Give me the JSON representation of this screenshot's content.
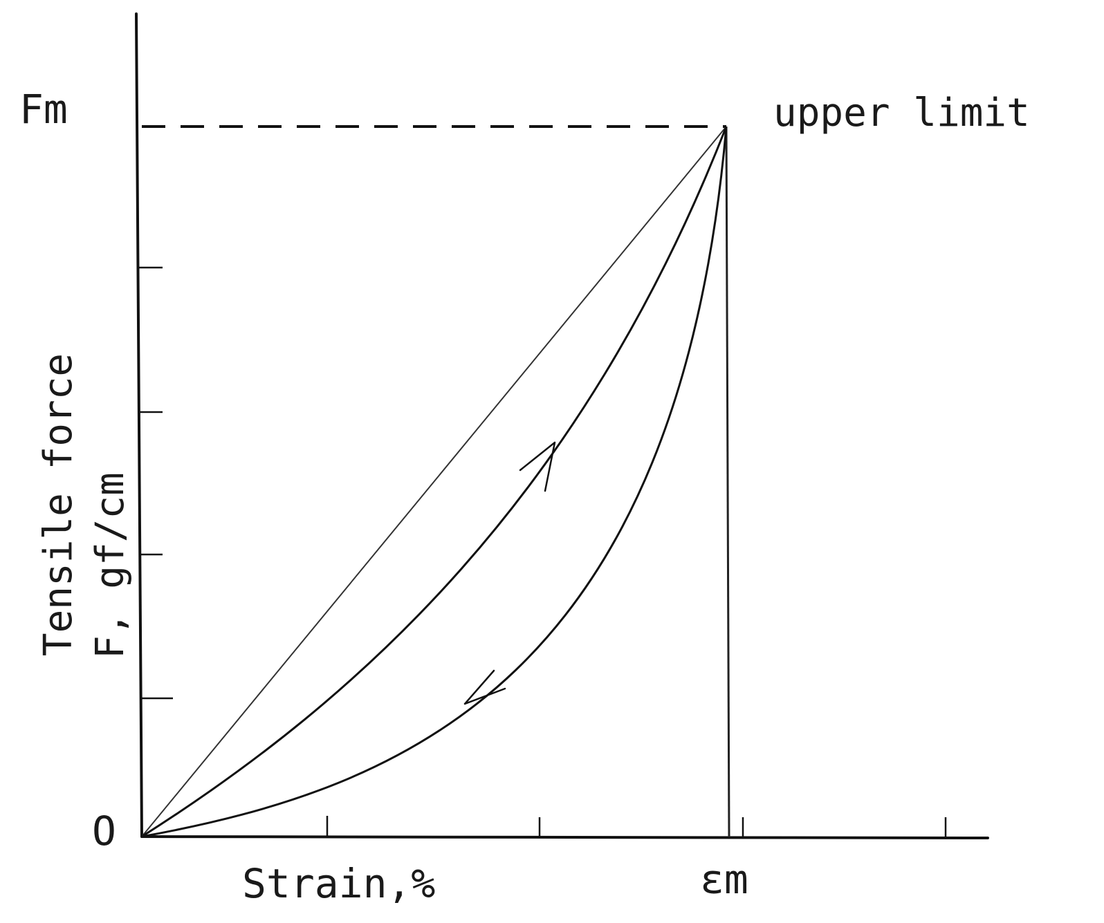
{
  "diagram": {
    "ylabel_line1": "Tensile force",
    "ylabel_line2": "F, gf/cm",
    "xlabel": "Strain,%",
    "y_max_label": "Fm",
    "x_max_label": "εm",
    "origin_label": "O",
    "upper_limit_label": "upper limit",
    "curves": [
      {
        "name": "",
        "icon": "straight-line",
        "direction": "reference"
      },
      {
        "name": "",
        "icon": "up-arrow",
        "direction": "loading"
      },
      {
        "name": "",
        "icon": "down-arrow",
        "direction": "unloading"
      }
    ]
  }
}
